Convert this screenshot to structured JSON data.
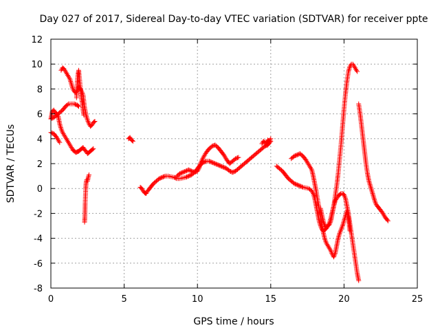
{
  "chart_data": {
    "type": "scatter",
    "title": "Day 027 of 2017, Sidereal Day-to-day VTEC variation (SDTVAR) for receiver ppte",
    "xlabel": "GPS time / hours",
    "ylabel": "SDTVAR / TECUs",
    "xlim": [
      0,
      25
    ],
    "ylim": [
      -8,
      12
    ],
    "xticks": [
      0,
      5,
      10,
      15,
      20,
      25
    ],
    "yticks": [
      -8,
      -6,
      -4,
      -2,
      0,
      2,
      4,
      6,
      8,
      10,
      12
    ],
    "grid": true,
    "marker": "+",
    "color": "#ff0000",
    "series": [
      {
        "name": "s1",
        "points": [
          [
            0.0,
            4.5
          ],
          [
            0.2,
            4.4
          ],
          [
            0.4,
            4.1
          ],
          [
            0.5,
            3.9
          ],
          [
            0.6,
            3.7
          ]
        ]
      },
      {
        "name": "s2",
        "points": [
          [
            0.0,
            5.6
          ],
          [
            0.1,
            6.2
          ],
          [
            0.2,
            6.3
          ],
          [
            0.3,
            6.1
          ],
          [
            0.4,
            6.0
          ],
          [
            0.5,
            5.8
          ],
          [
            0.6,
            5.2
          ],
          [
            0.7,
            4.8
          ],
          [
            0.8,
            4.5
          ],
          [
            0.9,
            4.3
          ],
          [
            1.0,
            4.1
          ],
          [
            1.1,
            3.9
          ],
          [
            1.2,
            3.7
          ],
          [
            1.3,
            3.5
          ],
          [
            1.4,
            3.3
          ],
          [
            1.5,
            3.1
          ],
          [
            1.6,
            3.0
          ],
          [
            1.7,
            2.9
          ],
          [
            1.8,
            2.95
          ],
          [
            1.9,
            3.0
          ],
          [
            2.0,
            3.1
          ],
          [
            2.1,
            3.2
          ],
          [
            2.2,
            3.3
          ],
          [
            2.3,
            3.1
          ],
          [
            2.4,
            3.0
          ],
          [
            2.5,
            2.8
          ],
          [
            2.6,
            2.9
          ],
          [
            2.7,
            3.0
          ],
          [
            2.8,
            3.1
          ],
          [
            2.9,
            3.2
          ]
        ]
      },
      {
        "name": "s3",
        "points": [
          [
            0.0,
            5.6
          ],
          [
            0.2,
            5.7
          ],
          [
            0.4,
            5.9
          ],
          [
            0.6,
            6.1
          ],
          [
            0.8,
            6.3
          ],
          [
            1.0,
            6.6
          ],
          [
            1.2,
            6.8
          ],
          [
            1.4,
            6.8
          ],
          [
            1.6,
            6.8
          ],
          [
            1.8,
            6.7
          ],
          [
            1.9,
            6.6
          ]
        ]
      },
      {
        "name": "s4",
        "points": [
          [
            0.7,
            9.5
          ],
          [
            0.8,
            9.7
          ],
          [
            0.9,
            9.6
          ],
          [
            1.0,
            9.4
          ],
          [
            1.1,
            9.2
          ],
          [
            1.2,
            9.0
          ],
          [
            1.3,
            8.8
          ],
          [
            1.4,
            8.4
          ],
          [
            1.5,
            8.0
          ],
          [
            1.6,
            7.8
          ],
          [
            1.7,
            7.7
          ],
          [
            1.8,
            7.9
          ],
          [
            1.9,
            8.2
          ],
          [
            2.0,
            8.0
          ],
          [
            2.1,
            7.8
          ],
          [
            2.2,
            7.5
          ],
          [
            2.3,
            6.5
          ],
          [
            2.4,
            5.9
          ],
          [
            2.5,
            5.5
          ],
          [
            2.6,
            5.2
          ],
          [
            2.7,
            5.0
          ],
          [
            2.8,
            5.1
          ],
          [
            2.9,
            5.3
          ],
          [
            3.0,
            5.4
          ]
        ]
      },
      {
        "name": "s5",
        "points": [
          [
            1.75,
            7.3
          ],
          [
            1.8,
            8.6
          ],
          [
            1.85,
            9.2
          ],
          [
            1.9,
            9.5
          ],
          [
            1.95,
            8.9
          ],
          [
            2.0,
            8.3
          ],
          [
            2.05,
            7.7
          ],
          [
            2.1,
            7.2
          ],
          [
            2.15,
            6.8
          ],
          [
            2.2,
            6.3
          ],
          [
            2.25,
            5.9
          ]
        ]
      },
      {
        "name": "s6",
        "points": [
          [
            2.3,
            -2.7
          ],
          [
            2.32,
            -2.3
          ],
          [
            2.34,
            -1.2
          ],
          [
            2.36,
            -0.6
          ],
          [
            2.38,
            0.0
          ],
          [
            2.4,
            0.4
          ],
          [
            2.42,
            0.6
          ],
          [
            2.45,
            0.7
          ],
          [
            2.5,
            0.6
          ],
          [
            2.55,
            0.9
          ],
          [
            2.6,
            1.1
          ]
        ]
      },
      {
        "name": "s7",
        "points": [
          [
            5.3,
            4.0
          ],
          [
            5.4,
            4.1
          ],
          [
            5.5,
            3.9
          ],
          [
            5.6,
            3.8
          ]
        ]
      },
      {
        "name": "s8",
        "points": [
          [
            6.1,
            0.1
          ],
          [
            6.2,
            0.0
          ],
          [
            6.3,
            -0.2
          ],
          [
            6.4,
            -0.35
          ],
          [
            6.5,
            -0.4
          ],
          [
            6.6,
            -0.2
          ],
          [
            6.8,
            0.1
          ],
          [
            7.0,
            0.4
          ],
          [
            7.2,
            0.6
          ],
          [
            7.4,
            0.8
          ],
          [
            7.6,
            0.9
          ],
          [
            7.8,
            1.0
          ],
          [
            8.0,
            1.0
          ],
          [
            8.2,
            0.95
          ],
          [
            8.4,
            0.9
          ],
          [
            8.6,
            0.8
          ],
          [
            8.8,
            0.8
          ],
          [
            9.0,
            0.85
          ],
          [
            9.2,
            0.9
          ],
          [
            9.4,
            1.0
          ],
          [
            9.6,
            1.1
          ],
          [
            9.8,
            1.3
          ],
          [
            10.0,
            1.6
          ],
          [
            10.2,
            1.9
          ],
          [
            10.4,
            2.1
          ],
          [
            10.6,
            2.2
          ],
          [
            10.8,
            2.2
          ],
          [
            11.0,
            2.1
          ],
          [
            11.2,
            2.0
          ],
          [
            11.4,
            1.9
          ],
          [
            11.6,
            1.8
          ],
          [
            11.8,
            1.7
          ],
          [
            12.0,
            1.6
          ],
          [
            12.2,
            1.4
          ],
          [
            12.4,
            1.3
          ],
          [
            12.6,
            1.4
          ],
          [
            12.8,
            1.6
          ],
          [
            13.0,
            1.8
          ],
          [
            13.2,
            2.0
          ],
          [
            13.4,
            2.2
          ],
          [
            13.6,
            2.4
          ],
          [
            13.8,
            2.6
          ],
          [
            14.0,
            2.8
          ],
          [
            14.2,
            3.0
          ],
          [
            14.4,
            3.2
          ],
          [
            14.6,
            3.4
          ],
          [
            14.8,
            3.5
          ],
          [
            15.0,
            3.8
          ]
        ]
      },
      {
        "name": "s9",
        "points": [
          [
            8.6,
            1.0
          ],
          [
            8.8,
            1.2
          ],
          [
            9.0,
            1.3
          ],
          [
            9.2,
            1.4
          ],
          [
            9.4,
            1.5
          ],
          [
            9.6,
            1.4
          ],
          [
            9.8,
            1.3
          ],
          [
            10.0,
            1.4
          ],
          [
            10.1,
            1.6
          ],
          [
            10.2,
            2.0
          ],
          [
            10.4,
            2.5
          ],
          [
            10.6,
            2.9
          ],
          [
            10.8,
            3.2
          ],
          [
            11.0,
            3.4
          ],
          [
            11.2,
            3.5
          ],
          [
            11.4,
            3.3
          ],
          [
            11.6,
            3.0
          ],
          [
            11.8,
            2.7
          ],
          [
            12.0,
            2.3
          ],
          [
            12.2,
            2.0
          ],
          [
            12.4,
            2.2
          ],
          [
            12.6,
            2.4
          ],
          [
            12.8,
            2.5
          ]
        ]
      },
      {
        "name": "s10",
        "points": [
          [
            14.4,
            3.6
          ],
          [
            14.5,
            3.8
          ],
          [
            14.6,
            3.7
          ],
          [
            14.7,
            3.5
          ],
          [
            14.8,
            3.9
          ],
          [
            14.9,
            3.8
          ],
          [
            15.0,
            4.0
          ]
        ]
      },
      {
        "name": "s11",
        "points": [
          [
            15.4,
            1.8
          ],
          [
            15.6,
            1.6
          ],
          [
            15.8,
            1.4
          ],
          [
            16.0,
            1.1
          ],
          [
            16.2,
            0.8
          ],
          [
            16.4,
            0.6
          ],
          [
            16.6,
            0.4
          ],
          [
            16.8,
            0.3
          ],
          [
            17.0,
            0.2
          ],
          [
            17.2,
            0.1
          ],
          [
            17.4,
            0.05
          ],
          [
            17.6,
            0.0
          ],
          [
            17.8,
            -0.2
          ],
          [
            17.9,
            -0.4
          ],
          [
            18.0,
            -0.8
          ],
          [
            18.1,
            -1.4
          ],
          [
            18.2,
            -2.0
          ],
          [
            18.3,
            -2.6
          ],
          [
            18.4,
            -3.0
          ],
          [
            18.5,
            -3.3
          ],
          [
            18.6,
            -3.4
          ],
          [
            18.7,
            -3.3
          ],
          [
            18.8,
            -3.2
          ],
          [
            18.9,
            -3.0
          ],
          [
            19.0,
            -2.8
          ],
          [
            19.1,
            -2.4
          ],
          [
            19.2,
            -1.9
          ],
          [
            19.3,
            -1.4
          ],
          [
            19.4,
            -1.0
          ],
          [
            19.5,
            -0.8
          ],
          [
            19.6,
            -0.6
          ],
          [
            19.7,
            -0.5
          ],
          [
            19.8,
            -0.4
          ],
          [
            19.9,
            -0.4
          ],
          [
            20.0,
            -0.5
          ],
          [
            20.1,
            -0.8
          ],
          [
            20.2,
            -1.4
          ],
          [
            20.3,
            -2.0
          ],
          [
            20.4,
            -2.8
          ],
          [
            20.5,
            -3.6
          ],
          [
            20.6,
            -4.4
          ],
          [
            20.7,
            -5.2
          ],
          [
            20.8,
            -6.0
          ],
          [
            20.9,
            -6.8
          ],
          [
            21.0,
            -7.4
          ]
        ]
      },
      {
        "name": "s12",
        "points": [
          [
            16.4,
            2.4
          ],
          [
            16.6,
            2.6
          ],
          [
            16.8,
            2.7
          ],
          [
            17.0,
            2.8
          ],
          [
            17.2,
            2.6
          ],
          [
            17.4,
            2.3
          ],
          [
            17.6,
            1.9
          ],
          [
            17.8,
            1.5
          ],
          [
            17.9,
            1.0
          ],
          [
            18.0,
            0.4
          ],
          [
            18.1,
            -0.2
          ],
          [
            18.2,
            -0.9
          ],
          [
            18.3,
            -1.6
          ],
          [
            18.4,
            -2.3
          ],
          [
            18.5,
            -3.0
          ],
          [
            18.6,
            -3.6
          ],
          [
            18.7,
            -4.1
          ],
          [
            18.8,
            -4.4
          ],
          [
            18.9,
            -4.6
          ],
          [
            19.0,
            -4.8
          ],
          [
            19.1,
            -5.0
          ],
          [
            19.2,
            -5.3
          ],
          [
            19.3,
            -5.5
          ],
          [
            19.4,
            -5.2
          ],
          [
            19.5,
            -4.6
          ],
          [
            19.6,
            -4.0
          ],
          [
            19.7,
            -3.6
          ],
          [
            19.8,
            -3.3
          ],
          [
            19.9,
            -3.0
          ],
          [
            20.0,
            -2.6
          ],
          [
            20.1,
            -2.2
          ],
          [
            20.2,
            -1.8
          ],
          [
            20.3,
            -2.4
          ],
          [
            20.4,
            -3.4
          ]
        ]
      },
      {
        "name": "s13",
        "points": [
          [
            18.4,
            -1.6
          ],
          [
            18.5,
            -2.2
          ],
          [
            18.6,
            -2.7
          ],
          [
            18.7,
            -3.0
          ],
          [
            18.8,
            -3.1
          ],
          [
            18.9,
            -3.0
          ],
          [
            19.0,
            -2.9
          ],
          [
            19.1,
            -2.6
          ],
          [
            19.2,
            -2.0
          ],
          [
            19.3,
            -1.4
          ],
          [
            19.4,
            -0.6
          ],
          [
            19.5,
            0.2
          ],
          [
            19.6,
            1.2
          ],
          [
            19.7,
            2.4
          ],
          [
            19.8,
            3.6
          ],
          [
            19.9,
            5.0
          ],
          [
            20.0,
            6.4
          ],
          [
            20.1,
            7.6
          ],
          [
            20.2,
            8.6
          ],
          [
            20.3,
            9.4
          ],
          [
            20.4,
            9.8
          ],
          [
            20.5,
            10.0
          ],
          [
            20.6,
            10.0
          ],
          [
            20.7,
            9.8
          ],
          [
            20.8,
            9.6
          ],
          [
            20.9,
            9.4
          ]
        ]
      },
      {
        "name": "s14",
        "points": [
          [
            21.0,
            6.8
          ],
          [
            21.1,
            6.0
          ],
          [
            21.2,
            5.0
          ],
          [
            21.3,
            4.0
          ],
          [
            21.4,
            3.0
          ],
          [
            21.5,
            2.0
          ],
          [
            21.6,
            1.2
          ],
          [
            21.7,
            0.6
          ],
          [
            21.8,
            0.2
          ],
          [
            21.9,
            -0.2
          ],
          [
            22.0,
            -0.6
          ],
          [
            22.1,
            -1.0
          ],
          [
            22.2,
            -1.3
          ],
          [
            22.4,
            -1.6
          ],
          [
            22.6,
            -1.9
          ],
          [
            22.8,
            -2.3
          ],
          [
            23.0,
            -2.6
          ]
        ]
      }
    ]
  }
}
